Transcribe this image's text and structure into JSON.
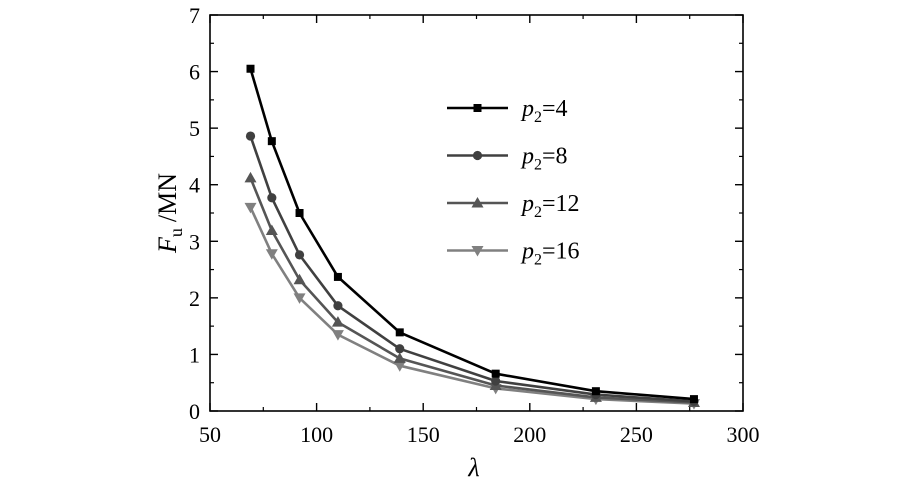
{
  "chart_data": {
    "type": "line",
    "title": "",
    "xlabel": "λ",
    "ylabel": "F_u /MN",
    "ylabel_main": "F",
    "ylabel_sub": "u",
    "ylabel_unit": "/MN",
    "xlim": [
      50,
      300
    ],
    "ylim": [
      0,
      7
    ],
    "xticks": [
      50,
      100,
      150,
      200,
      250,
      300
    ],
    "yticks": [
      0,
      1,
      2,
      3,
      4,
      5,
      6,
      7
    ],
    "grid": false,
    "legend_position": "top-right",
    "x": [
      69,
      79,
      92,
      110,
      139,
      184,
      231,
      277
    ],
    "series": [
      {
        "name": "p2=4",
        "label_main": "p",
        "label_sub": "2",
        "label_rest": "=4",
        "color": "#000000",
        "marker": "square",
        "values": [
          6.05,
          4.77,
          3.5,
          2.37,
          1.39,
          0.66,
          0.35,
          0.21
        ]
      },
      {
        "name": "p2=8",
        "label_main": "p",
        "label_sub": "2",
        "label_rest": "=8",
        "color": "#404040",
        "marker": "circle",
        "values": [
          4.86,
          3.77,
          2.76,
          1.86,
          1.1,
          0.53,
          0.29,
          0.17
        ]
      },
      {
        "name": "p2=12",
        "label_main": "p",
        "label_sub": "2",
        "label_rest": "=12",
        "color": "#555555",
        "marker": "triangle-up",
        "values": [
          4.12,
          3.19,
          2.32,
          1.57,
          0.93,
          0.45,
          0.24,
          0.15
        ]
      },
      {
        "name": "p2=16",
        "label_main": "p",
        "label_sub": "2",
        "label_rest": "=16",
        "color": "#808080",
        "marker": "triangle-down",
        "values": [
          3.6,
          2.78,
          2.0,
          1.35,
          0.8,
          0.4,
          0.21,
          0.13
        ]
      }
    ]
  }
}
